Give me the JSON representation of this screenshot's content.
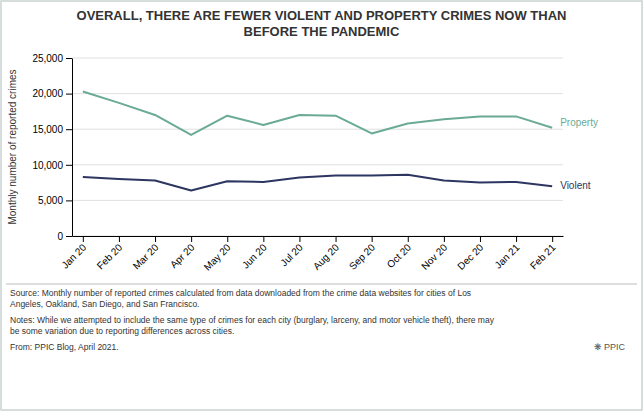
{
  "chart_data": {
    "type": "line",
    "title": "OVERALL, THERE ARE FEWER VIOLENT AND PROPERTY CRIMES NOW THAN\nBEFORE THE PANDEMIC",
    "ylabel": "Monthly number of reported crimes",
    "categories": [
      "Jan 20",
      "Feb 20",
      "Mar 20",
      "Apr 20",
      "May 20",
      "Jun 20",
      "Jul 20",
      "Aug 20",
      "Sep 20",
      "Oct 20",
      "Nov 20",
      "Dec 20",
      "Jan 21",
      "Feb 21"
    ],
    "series": [
      {
        "name": "Property",
        "color": "#6aaa96",
        "values": [
          20300,
          18700,
          17000,
          14200,
          16900,
          15600,
          17000,
          16900,
          14400,
          15800,
          16400,
          16800,
          16800,
          15200
        ]
      },
      {
        "name": "Violent",
        "color": "#2d3561",
        "values": [
          8300,
          8000,
          7800,
          6400,
          7700,
          7600,
          8200,
          8500,
          8500,
          8600,
          7800,
          7500,
          7600,
          7000
        ]
      }
    ],
    "ylim": [
      0,
      25000
    ],
    "yticks": [
      0,
      {
        "value": 5000,
        "label": "5,000"
      },
      {
        "value": 10000,
        "label": "10,000"
      },
      {
        "value": 15000,
        "label": "15,000"
      },
      {
        "value": 20000,
        "label": "20,000"
      },
      {
        "value": 25000,
        "label": "25,000"
      }
    ],
    "grid": true,
    "annotations": [
      "Source: Monthly number of reported crimes calculated from data downloaded from the crime data websites for cities of Los\nAngeles, Oakland, San Diego, and San Francisco.",
      "Notes: While we attempted to include the same type of crimes for each city (burglary, larceny, and motor vehicle theft), there may\nbe some variation due to reporting differences across cities.",
      "From: PPIC Blog, April 2021.",
      "❋  PPIC"
    ]
  }
}
